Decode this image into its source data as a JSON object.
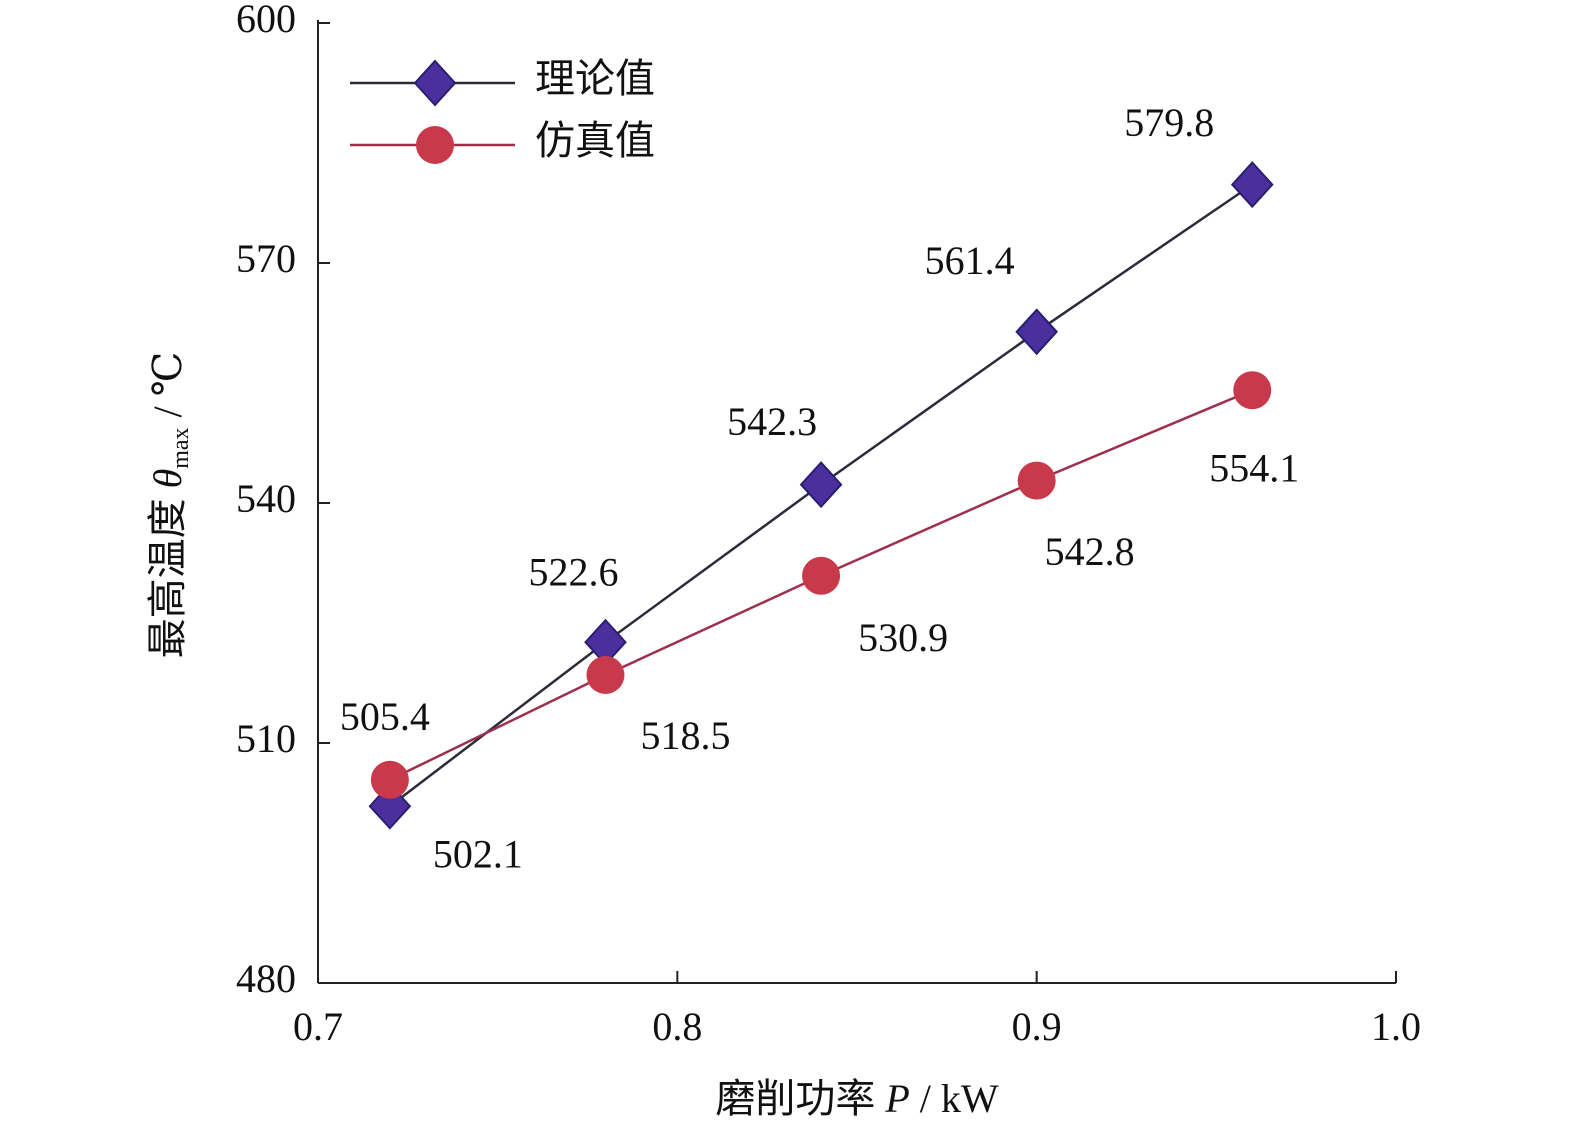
{
  "chart_data": {
    "type": "line",
    "xlabel": [
      "磨削功率",
      "P",
      "/ kW"
    ],
    "ylabel": [
      "最高温度",
      "θ",
      "max",
      "/ ℃"
    ],
    "x": [
      0.72,
      0.78,
      0.84,
      0.9,
      0.96
    ],
    "series": [
      {
        "name": "理论值",
        "color": "#4b2f9e",
        "marker": "diamond",
        "values": [
          502.1,
          522.6,
          542.3,
          561.4,
          579.8
        ]
      },
      {
        "name": "仿真值",
        "color": "#c8394b",
        "marker": "circle",
        "values": [
          505.4,
          518.5,
          530.9,
          542.8,
          554.1
        ]
      }
    ],
    "xlim": [
      0.7,
      1.0
    ],
    "xticks": [
      0.7,
      0.8,
      0.9,
      {
        "value": 1.0,
        "label": "1.0"
      }
    ],
    "ylim": [
      480,
      600
    ],
    "yticks": [
      480,
      510,
      540,
      570,
      600
    ],
    "legend": "upper left",
    "grid": false
  }
}
